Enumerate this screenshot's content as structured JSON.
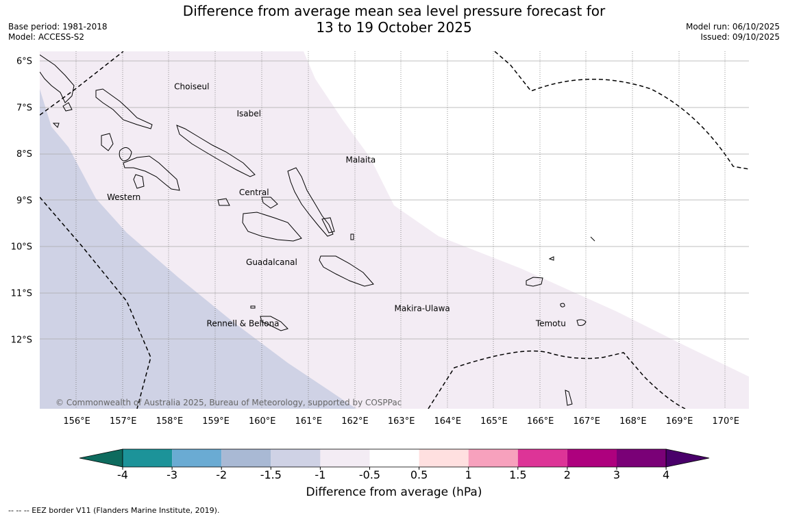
{
  "title": {
    "line1": "Difference from average mean sea level pressure forecast for",
    "line2": "13 to 19 October 2025"
  },
  "meta": {
    "base_period": "Base period: 1981-2018",
    "model": "Model: ACCESS-S2",
    "model_run": "Model run: 06/10/2025",
    "issued": "Issued: 09/10/2025"
  },
  "copyright": "© Commonwealth of Australia 2025, Bureau of Meteorology, supported by COSPPac",
  "map": {
    "lon_range": [
      155.2,
      170.5
    ],
    "lat_range": [
      -13.5,
      -5.8
    ],
    "lon_ticks": [
      "156°E",
      "157°E",
      "158°E",
      "159°E",
      "160°E",
      "161°E",
      "162°E",
      "163°E",
      "164°E",
      "165°E",
      "166°E",
      "167°E",
      "168°E",
      "169°E",
      "170°E"
    ],
    "lat_ticks": [
      "6°S",
      "7°S",
      "8°S",
      "9°S",
      "10°S",
      "11°S",
      "12°S"
    ],
    "provinces": [
      {
        "name": "Choiseul",
        "lon": 158.1,
        "lat": -6.62
      },
      {
        "name": "Isabel",
        "lon": 159.45,
        "lat": -7.2
      },
      {
        "name": "Malaita",
        "lon": 161.8,
        "lat": -8.2
      },
      {
        "name": "Western",
        "lon": 156.65,
        "lat": -9.0
      },
      {
        "name": "Central",
        "lon": 159.5,
        "lat": -8.9
      },
      {
        "name": "Guadalcanal",
        "lon": 159.65,
        "lat": -10.4
      },
      {
        "name": "Makira-Ulawa",
        "lon": 162.85,
        "lat": -11.4
      },
      {
        "name": "Temotu",
        "lon": 165.9,
        "lat": -11.72
      },
      {
        "name": "Rennell & Bellona",
        "lon": 158.8,
        "lat": -11.72
      }
    ]
  },
  "colorbar": {
    "label": "Difference from average (hPa)",
    "ticks": [
      "-4",
      "-3",
      "-2",
      "-1.5",
      "-1",
      "-0.5",
      "0.5",
      "1",
      "1.5",
      "2",
      "3",
      "4"
    ],
    "colors": [
      "#0e6b5e",
      "#1c9399",
      "#6aabd3",
      "#a9b9d4",
      "#cfd2e5",
      "#f3ecf4",
      "#ffffff",
      "#ffe0e0",
      "#f7a1bd",
      "#dd3497",
      "#ae017e",
      "#7a0177",
      "#49006a"
    ]
  },
  "legend_note": "--  --  -- EEZ border V11 (Flanders Marine Institute, 2019)."
}
